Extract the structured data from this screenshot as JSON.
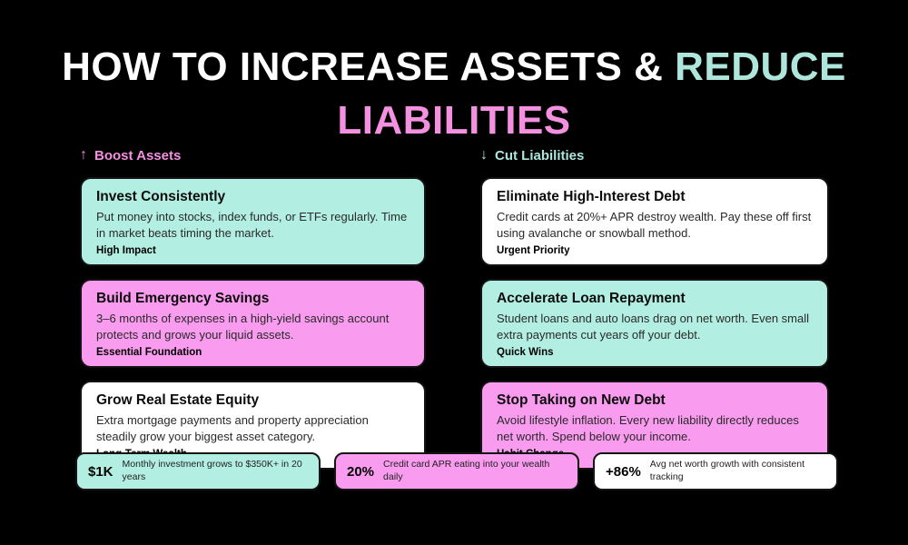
{
  "colors": {
    "background": "#000000",
    "mint_card": "#b2efe2",
    "pink_card": "#f99bee",
    "white_card": "#ffffff",
    "mint_text": "#aee6dc",
    "pink_text": "#f490e0",
    "title_white": "#ffffff"
  },
  "title": {
    "line1_white": "HOW TO INCREASE ASSETS & ",
    "line1_accent": "REDUCE",
    "line2_accent": "LIABILITIES"
  },
  "columns": [
    {
      "header": {
        "arrow": "↑",
        "label": "Boost Assets"
      },
      "cards": [
        {
          "variant": "mint",
          "title": "Invest Consistently",
          "body": "Put money into stocks, index funds, or ETFs regularly. Time in market beats timing the market.",
          "tag": "High Impact"
        },
        {
          "variant": "pink",
          "title": "Build Emergency Savings",
          "body": "3–6 months of expenses in a high-yield savings account protects and grows your liquid assets.",
          "tag": "Essential Foundation"
        },
        {
          "variant": "white",
          "title": "Grow Real Estate Equity",
          "body": "Extra mortgage payments and property appreciation steadily grow your biggest asset category.",
          "tag": "Long-Term Wealth"
        }
      ]
    },
    {
      "header": {
        "arrow": "↓",
        "label": "Cut Liabilities"
      },
      "cards": [
        {
          "variant": "white",
          "title": "Eliminate High-Interest Debt",
          "body": "Credit cards at 20%+ APR destroy wealth. Pay these off first using avalanche or snowball method.",
          "tag": "Urgent Priority"
        },
        {
          "variant": "mint",
          "title": "Accelerate Loan Repayment",
          "body": "Student loans and auto loans drag on net worth. Even small extra payments cut years off your debt.",
          "tag": "Quick Wins"
        },
        {
          "variant": "pink",
          "title": "Stop Taking on New Debt",
          "body": "Avoid lifestyle inflation. Every new liability directly reduces net worth. Spend below your income.",
          "tag": "Habit Change"
        }
      ]
    }
  ],
  "stats": [
    {
      "variant": "mint",
      "value": "$1K",
      "label": "Monthly investment grows to $350K+ in 20 years"
    },
    {
      "variant": "pink",
      "value": "20%",
      "label": "Credit card APR eating into your wealth daily"
    },
    {
      "variant": "white",
      "value": "+86%",
      "label": "Avg net worth growth with consistent tracking"
    }
  ]
}
